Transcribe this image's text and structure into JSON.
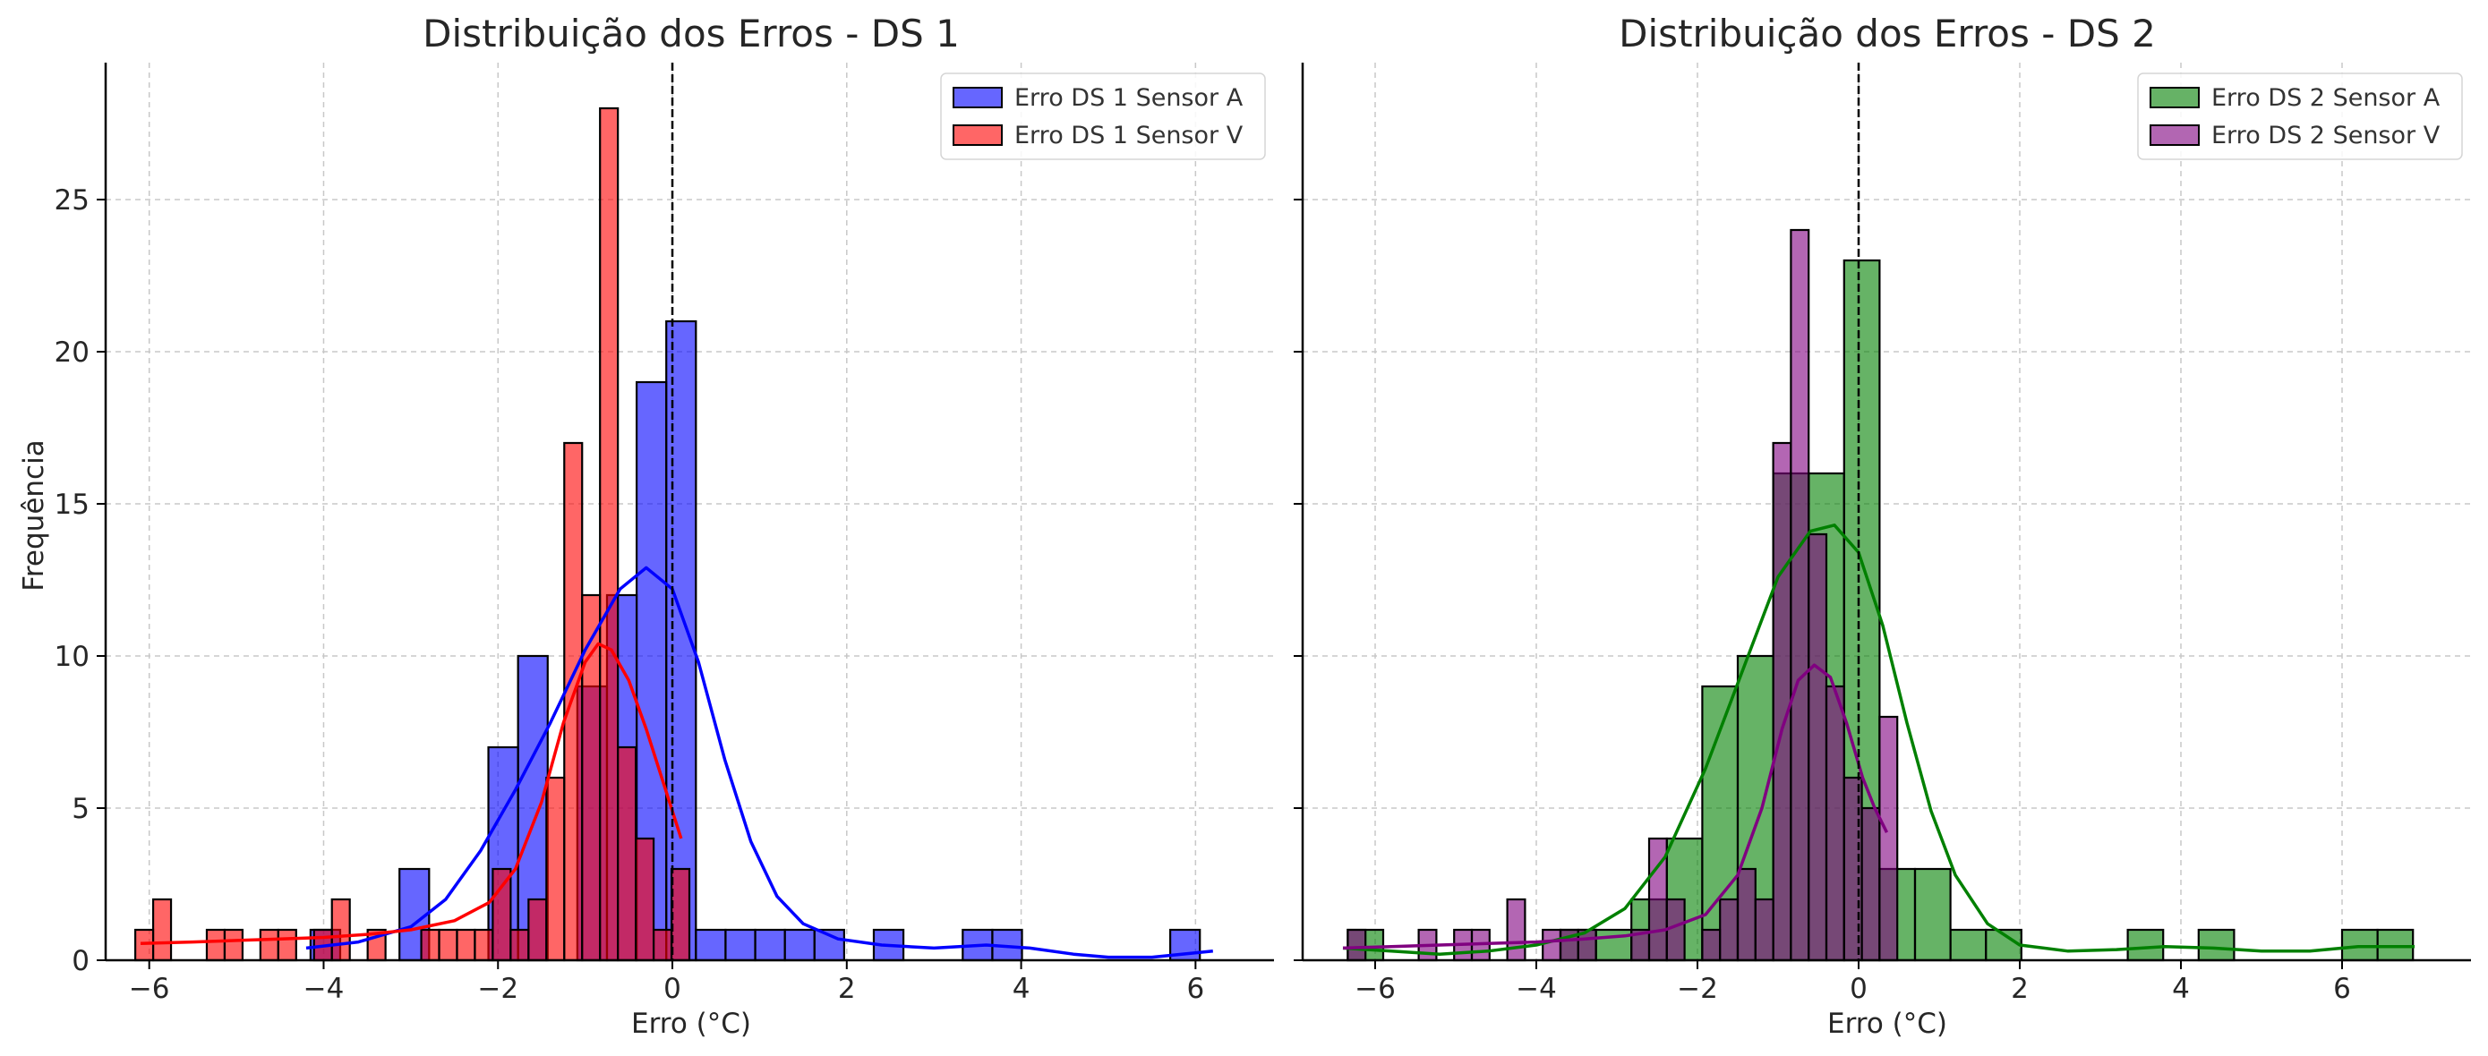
{
  "chart_data": [
    {
      "type": "histogram",
      "title": "Distribuição dos Erros - DS 1",
      "xlabel": "Erro (°C)",
      "ylabel": "Frequência",
      "xlim": [
        -6.5,
        6.9
      ],
      "ylim": [
        0,
        29.5
      ],
      "xticks": [
        -6,
        -4,
        -2,
        0,
        2,
        4,
        6
      ],
      "yticks": [
        0,
        5,
        10,
        15,
        20,
        25
      ],
      "grid": true,
      "legend_position": "top-right",
      "reference_line_x": 0,
      "series": [
        {
          "name": "Erro DS 1 Sensor A",
          "color": "#0000ff",
          "bin_width": 0.34,
          "bins": [
            {
              "x0": -4.15,
              "count": 1
            },
            {
              "x0": -3.13,
              "count": 3
            },
            {
              "x0": -2.11,
              "count": 7
            },
            {
              "x0": -1.77,
              "count": 10
            },
            {
              "x0": -1.09,
              "count": 9
            },
            {
              "x0": -0.75,
              "count": 12
            },
            {
              "x0": -0.41,
              "count": 19
            },
            {
              "x0": -0.07,
              "count": 21
            },
            {
              "x0": 0.27,
              "count": 1
            },
            {
              "x0": 0.61,
              "count": 1
            },
            {
              "x0": 0.95,
              "count": 1
            },
            {
              "x0": 1.29,
              "count": 1
            },
            {
              "x0": 1.63,
              "count": 1
            },
            {
              "x0": 2.31,
              "count": 1
            },
            {
              "x0": 3.33,
              "count": 1
            },
            {
              "x0": 3.67,
              "count": 1
            },
            {
              "x0": 5.71,
              "count": 1
            }
          ],
          "kde": [
            [
              -4.2,
              0.4
            ],
            [
              -3.6,
              0.6
            ],
            [
              -3.0,
              1.1
            ],
            [
              -2.6,
              2.0
            ],
            [
              -2.2,
              3.6
            ],
            [
              -1.8,
              5.6
            ],
            [
              -1.4,
              7.8
            ],
            [
              -1.0,
              10.2
            ],
            [
              -0.6,
              12.2
            ],
            [
              -0.3,
              12.9
            ],
            [
              0.0,
              12.2
            ],
            [
              0.3,
              9.8
            ],
            [
              0.6,
              6.6
            ],
            [
              0.9,
              3.9
            ],
            [
              1.2,
              2.1
            ],
            [
              1.5,
              1.2
            ],
            [
              1.9,
              0.7
            ],
            [
              2.4,
              0.5
            ],
            [
              3.0,
              0.4
            ],
            [
              3.6,
              0.5
            ],
            [
              4.1,
              0.4
            ],
            [
              4.6,
              0.2
            ],
            [
              5.0,
              0.1
            ],
            [
              5.5,
              0.1
            ],
            [
              6.2,
              0.3
            ]
          ]
        },
        {
          "name": "Erro DS 1 Sensor V",
          "color": "#ff0000",
          "bin_width": 0.205,
          "bins": [
            {
              "x0": -6.16,
              "count": 1
            },
            {
              "x0": -5.955,
              "count": 2
            },
            {
              "x0": -5.34,
              "count": 1
            },
            {
              "x0": -5.135,
              "count": 1
            },
            {
              "x0": -4.725,
              "count": 1
            },
            {
              "x0": -4.52,
              "count": 1
            },
            {
              "x0": -4.11,
              "count": 1
            },
            {
              "x0": -3.905,
              "count": 2
            },
            {
              "x0": -3.495,
              "count": 1
            },
            {
              "x0": -2.88,
              "count": 1
            },
            {
              "x0": -2.675,
              "count": 1
            },
            {
              "x0": -2.47,
              "count": 1
            },
            {
              "x0": -2.265,
              "count": 1
            },
            {
              "x0": -2.06,
              "count": 3
            },
            {
              "x0": -1.855,
              "count": 1
            },
            {
              "x0": -1.65,
              "count": 2
            },
            {
              "x0": -1.445,
              "count": 6
            },
            {
              "x0": -1.24,
              "count": 17
            },
            {
              "x0": -1.035,
              "count": 12
            },
            {
              "x0": -0.83,
              "count": 28
            },
            {
              "x0": -0.625,
              "count": 7
            },
            {
              "x0": -0.42,
              "count": 4
            },
            {
              "x0": -0.215,
              "count": 1
            },
            {
              "x0": -0.01,
              "count": 3
            }
          ],
          "kde": [
            [
              -6.1,
              0.55
            ],
            [
              -5.5,
              0.6
            ],
            [
              -5.0,
              0.65
            ],
            [
              -4.5,
              0.7
            ],
            [
              -4.0,
              0.75
            ],
            [
              -3.5,
              0.85
            ],
            [
              -3.0,
              1.0
            ],
            [
              -2.5,
              1.3
            ],
            [
              -2.1,
              1.9
            ],
            [
              -1.8,
              3.0
            ],
            [
              -1.5,
              5.2
            ],
            [
              -1.25,
              7.8
            ],
            [
              -1.0,
              9.8
            ],
            [
              -0.85,
              10.4
            ],
            [
              -0.7,
              10.2
            ],
            [
              -0.5,
              9.2
            ],
            [
              -0.3,
              7.6
            ],
            [
              -0.1,
              5.8
            ],
            [
              0.1,
              4.0
            ]
          ]
        }
      ]
    },
    {
      "type": "histogram",
      "title": "Distribuição dos Erros - DS 2",
      "xlabel": "Erro (°C)",
      "ylabel": "",
      "xlim": [
        -6.9,
        7.6
      ],
      "ylim": [
        0,
        29.5
      ],
      "xticks": [
        -6,
        -4,
        -2,
        0,
        2,
        4,
        6
      ],
      "yticks": [
        0,
        5,
        10,
        15,
        20,
        25
      ],
      "grid": true,
      "legend_position": "top-right",
      "reference_line_x": 0,
      "series": [
        {
          "name": "Erro DS 2 Sensor A",
          "color": "#008000",
          "bin_width": 0.44,
          "bins": [
            {
              "x0": -6.34,
              "count": 1
            },
            {
              "x0": -3.7,
              "count": 1
            },
            {
              "x0": -3.26,
              "count": 1
            },
            {
              "x0": -2.82,
              "count": 2
            },
            {
              "x0": -2.38,
              "count": 4
            },
            {
              "x0": -1.94,
              "count": 9
            },
            {
              "x0": -1.5,
              "count": 10
            },
            {
              "x0": -1.06,
              "count": 16
            },
            {
              "x0": -0.62,
              "count": 16
            },
            {
              "x0": -0.18,
              "count": 23
            },
            {
              "x0": 0.26,
              "count": 3
            },
            {
              "x0": 0.7,
              "count": 3
            },
            {
              "x0": 1.14,
              "count": 1
            },
            {
              "x0": 1.58,
              "count": 1
            },
            {
              "x0": 3.34,
              "count": 1
            },
            {
              "x0": 4.22,
              "count": 1
            },
            {
              "x0": 6.0,
              "count": 1
            },
            {
              "x0": 6.44,
              "count": 1
            }
          ],
          "kde": [
            [
              -6.4,
              0.4
            ],
            [
              -5.8,
              0.3
            ],
            [
              -5.2,
              0.2
            ],
            [
              -4.6,
              0.3
            ],
            [
              -4.0,
              0.5
            ],
            [
              -3.4,
              0.9
            ],
            [
              -2.9,
              1.7
            ],
            [
              -2.4,
              3.4
            ],
            [
              -1.9,
              6.3
            ],
            [
              -1.4,
              9.8
            ],
            [
              -1.0,
              12.6
            ],
            [
              -0.6,
              14.1
            ],
            [
              -0.3,
              14.3
            ],
            [
              0.0,
              13.4
            ],
            [
              0.3,
              11.0
            ],
            [
              0.6,
              7.8
            ],
            [
              0.9,
              4.9
            ],
            [
              1.2,
              2.8
            ],
            [
              1.6,
              1.2
            ],
            [
              2.0,
              0.5
            ],
            [
              2.6,
              0.3
            ],
            [
              3.2,
              0.35
            ],
            [
              3.8,
              0.45
            ],
            [
              4.4,
              0.4
            ],
            [
              5.0,
              0.3
            ],
            [
              5.6,
              0.3
            ],
            [
              6.2,
              0.45
            ],
            [
              6.9,
              0.45
            ]
          ]
        },
        {
          "name": "Erro DS 2 Sensor V",
          "color": "#800080",
          "bin_width": 0.22,
          "bins": [
            {
              "x0": -6.34,
              "count": 1
            },
            {
              "x0": -5.46,
              "count": 1
            },
            {
              "x0": -5.02,
              "count": 1
            },
            {
              "x0": -4.8,
              "count": 1
            },
            {
              "x0": -4.36,
              "count": 2
            },
            {
              "x0": -3.92,
              "count": 1
            },
            {
              "x0": -3.7,
              "count": 1
            },
            {
              "x0": -3.48,
              "count": 1
            },
            {
              "x0": -2.82,
              "count": 1
            },
            {
              "x0": -2.6,
              "count": 4
            },
            {
              "x0": -2.38,
              "count": 2
            },
            {
              "x0": -1.94,
              "count": 1
            },
            {
              "x0": -1.72,
              "count": 2
            },
            {
              "x0": -1.5,
              "count": 3
            },
            {
              "x0": -1.28,
              "count": 2
            },
            {
              "x0": -1.06,
              "count": 17
            },
            {
              "x0": -0.84,
              "count": 24
            },
            {
              "x0": -0.62,
              "count": 14
            },
            {
              "x0": -0.4,
              "count": 9
            },
            {
              "x0": -0.18,
              "count": 6
            },
            {
              "x0": 0.04,
              "count": 5
            },
            {
              "x0": 0.26,
              "count": 8
            }
          ],
          "kde": [
            [
              -6.4,
              0.4
            ],
            [
              -5.8,
              0.45
            ],
            [
              -5.2,
              0.5
            ],
            [
              -4.6,
              0.55
            ],
            [
              -4.0,
              0.6
            ],
            [
              -3.4,
              0.7
            ],
            [
              -2.9,
              0.8
            ],
            [
              -2.4,
              1.0
            ],
            [
              -1.9,
              1.5
            ],
            [
              -1.5,
              2.8
            ],
            [
              -1.2,
              5.0
            ],
            [
              -0.95,
              7.6
            ],
            [
              -0.75,
              9.2
            ],
            [
              -0.55,
              9.7
            ],
            [
              -0.35,
              9.3
            ],
            [
              -0.15,
              7.8
            ],
            [
              0.05,
              6.0
            ],
            [
              0.2,
              5.0
            ],
            [
              0.35,
              4.2
            ]
          ]
        }
      ]
    }
  ]
}
